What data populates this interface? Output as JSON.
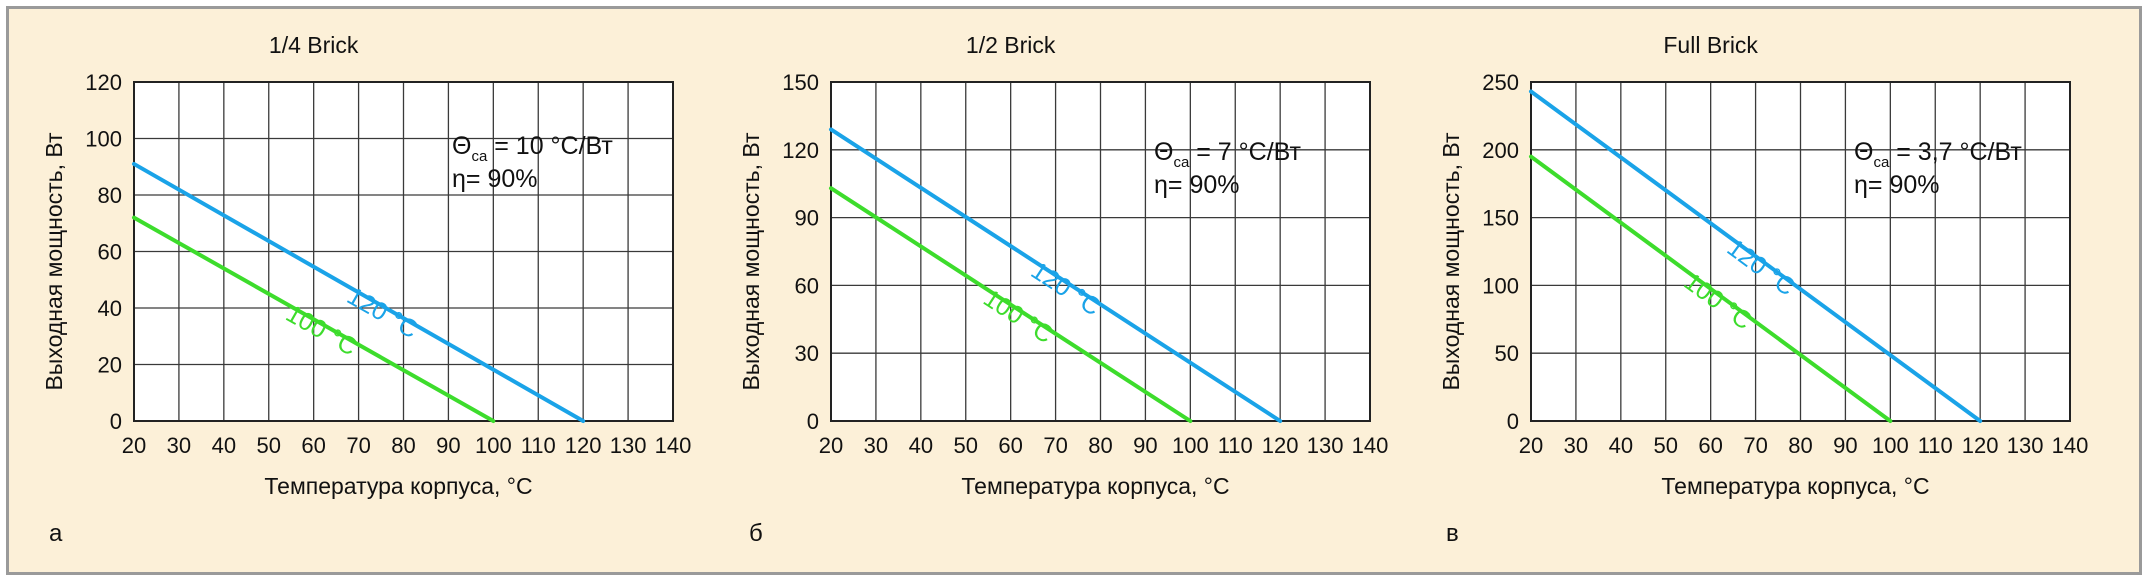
{
  "colors": {
    "background": "#fcf0d8",
    "plot_bg": "#ffffff",
    "grid": "#3a3a3a",
    "series_120": "#1aa3e8",
    "series_100": "#3ddc2c",
    "frame": "#9a9a9a"
  },
  "chart_data": [
    {
      "type": "line",
      "panel_label": "а",
      "title": "1/4 Brick",
      "xlabel": "Температура корпуса, °С",
      "ylabel": "Выходная мощность, Вт",
      "xlim": [
        20,
        140
      ],
      "ylim": [
        0,
        120
      ],
      "xticks": [
        20,
        30,
        40,
        50,
        60,
        70,
        80,
        90,
        100,
        110,
        120,
        130,
        140
      ],
      "yticks": [
        0,
        20,
        40,
        60,
        80,
        100,
        120
      ],
      "grid": true,
      "annotation": {
        "symbol": "Θ",
        "sub": "ca",
        "value": " = 10 °С/Вт",
        "eta": "η= 90%"
      },
      "series": [
        {
          "name": "120 °С",
          "color_key": "series_120",
          "x": [
            20,
            120
          ],
          "y": [
            91,
            0
          ]
        },
        {
          "name": "100 °С",
          "color_key": "series_100",
          "x": [
            20,
            100
          ],
          "y": [
            72,
            0
          ]
        }
      ]
    },
    {
      "type": "line",
      "panel_label": "б",
      "title": "1/2 Brick",
      "xlabel": "Температура корпуса, °С",
      "ylabel": "Выходная мощность, Вт",
      "xlim": [
        20,
        140
      ],
      "ylim": [
        0,
        150
      ],
      "xticks": [
        20,
        30,
        40,
        50,
        60,
        70,
        80,
        90,
        100,
        110,
        120,
        130,
        140
      ],
      "yticks": [
        0,
        30,
        60,
        90,
        120,
        150
      ],
      "grid": true,
      "annotation": {
        "symbol": "Θ",
        "sub": "ca",
        "value": " = 7 °С/Вт",
        "eta": "η= 90%"
      },
      "series": [
        {
          "name": "120 °С",
          "color_key": "series_120",
          "x": [
            20,
            120
          ],
          "y": [
            129,
            0
          ]
        },
        {
          "name": "100 °С",
          "color_key": "series_100",
          "x": [
            20,
            100
          ],
          "y": [
            103,
            0
          ]
        }
      ]
    },
    {
      "type": "line",
      "panel_label": "в",
      "title": "Full Brick",
      "xlabel": "Температура корпуса, °С",
      "ylabel": "Выходная мощность, Вт",
      "xlim": [
        20,
        140
      ],
      "ylim": [
        0,
        250
      ],
      "xticks": [
        20,
        30,
        40,
        50,
        60,
        70,
        80,
        90,
        100,
        110,
        120,
        130,
        140
      ],
      "yticks": [
        0,
        50,
        100,
        150,
        200,
        250
      ],
      "grid": true,
      "annotation": {
        "symbol": "Θ",
        "sub": "ca",
        "value": " = 3,7 °С/Вт",
        "eta": "η= 90%"
      },
      "series": [
        {
          "name": "120 °С",
          "color_key": "series_120",
          "x": [
            20,
            120
          ],
          "y": [
            243,
            0
          ]
        },
        {
          "name": "100 °С",
          "color_key": "series_100",
          "x": [
            20,
            100
          ],
          "y": [
            195,
            0
          ]
        }
      ]
    }
  ]
}
